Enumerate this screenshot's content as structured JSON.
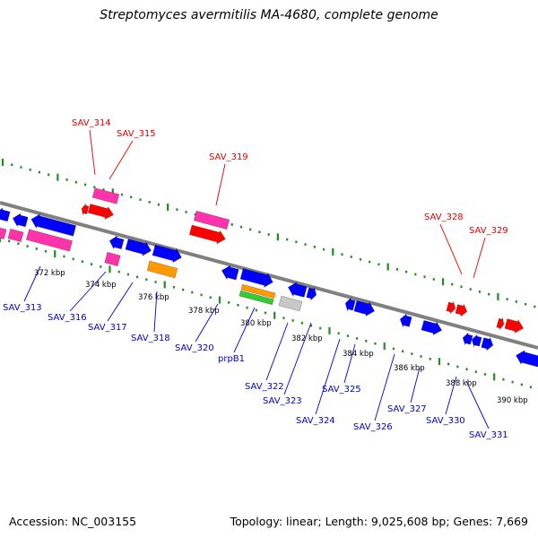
{
  "title": "Streptomyces avermitilis MA-4680, complete genome",
  "accession": "Accession: NC_003155",
  "stats": "Topology: linear; Length: 9,025,608 bp; Genes: 7,669",
  "colors": {
    "backbone": "#808080",
    "dots": "#228b22",
    "red_label": "#e00000",
    "blue_label": "#0000cc",
    "red": "#ff0000",
    "blue": "#0000ff",
    "pink": "#ff33aa",
    "orange": "#ff9900",
    "green": "#33cc33",
    "gray": "#c8c8c8",
    "tick_text": "#000000"
  },
  "ticks": [
    {
      "label": "372 kbp"
    },
    {
      "label": "374 kbp"
    },
    {
      "label": "376 kbp"
    },
    {
      "label": "378 kbp"
    },
    {
      "label": "380 kbp"
    },
    {
      "label": "382 kbp"
    },
    {
      "label": "384 kbp"
    },
    {
      "label": "386 kbp"
    },
    {
      "label": "388 kbp"
    },
    {
      "label": "390 kbp"
    }
  ],
  "genes_top": [
    {
      "name": "SAV_314",
      "color": "red"
    },
    {
      "name": "SAV_315",
      "color": "red"
    },
    {
      "name": "SAV_319",
      "color": "red"
    },
    {
      "name": "SAV_328",
      "color": "red"
    },
    {
      "name": "SAV_329",
      "color": "red"
    }
  ],
  "genes_bottom": [
    {
      "name": "SAV_313",
      "color": "blue"
    },
    {
      "name": "SAV_316",
      "color": "blue"
    },
    {
      "name": "SAV_317",
      "color": "blue"
    },
    {
      "name": "SAV_318",
      "color": "blue"
    },
    {
      "name": "SAV_320",
      "color": "blue"
    },
    {
      "name": "prpB1",
      "color": "blue"
    },
    {
      "name": "SAV_322",
      "color": "blue"
    },
    {
      "name": "SAV_323",
      "color": "blue"
    },
    {
      "name": "SAV_324",
      "color": "blue"
    },
    {
      "name": "SAV_325",
      "color": "blue"
    },
    {
      "name": "SAV_326",
      "color": "blue"
    },
    {
      "name": "SAV_327",
      "color": "blue"
    },
    {
      "name": "SAV_330",
      "color": "blue"
    },
    {
      "name": "SAV_331",
      "color": "blue"
    }
  ]
}
